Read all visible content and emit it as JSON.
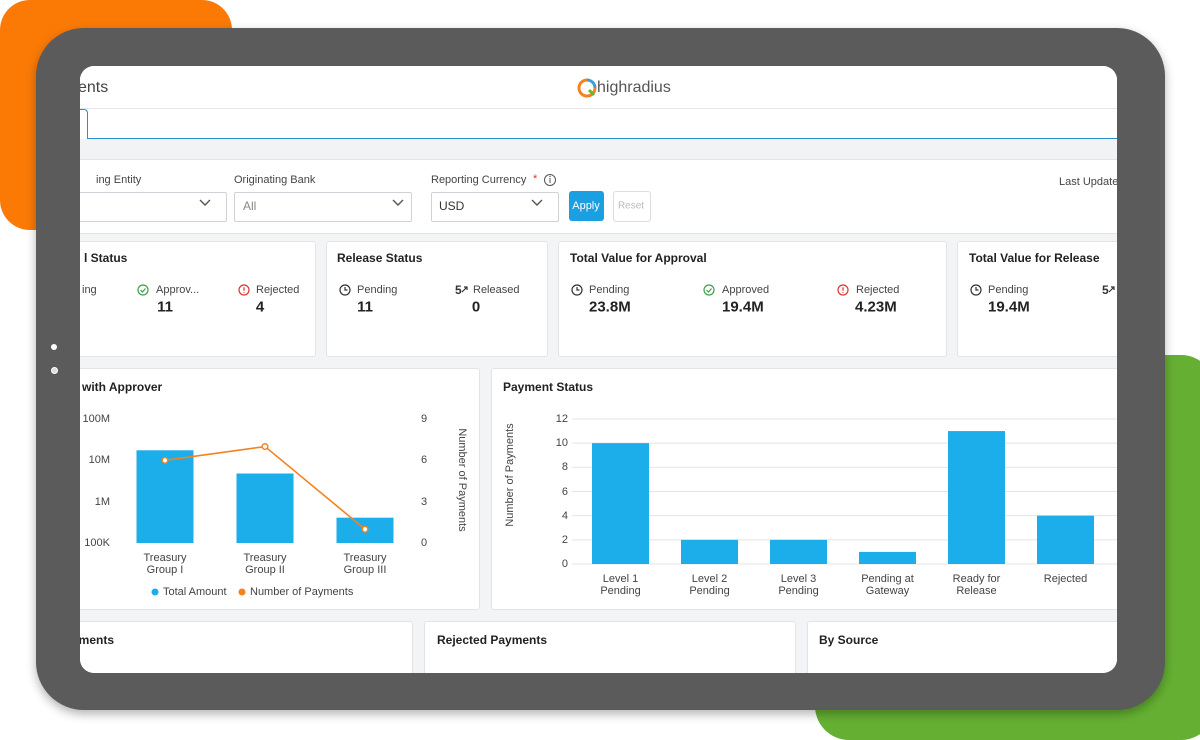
{
  "header": {
    "title": "ents",
    "logo": "highradius"
  },
  "filters": [
    {
      "label": "ing Entity"
    },
    {
      "label": "Originating Bank",
      "value": "All"
    },
    {
      "label": "Reporting Currency",
      "required": "*",
      "value": "USD"
    }
  ],
  "buttons": {
    "apply": "Apply",
    "reset": "Reset"
  },
  "last_update": "Last Update",
  "stat_cards": [
    {
      "title": "l Status",
      "items": [
        {
          "label": "ing"
        },
        {
          "label": "Approv...",
          "value": 11
        },
        {
          "label": "Rejected",
          "value": 4
        }
      ]
    },
    {
      "title": "Release Status",
      "items": [
        {
          "label": "Pending",
          "value": 11
        },
        {
          "label": "Released",
          "value": 0
        }
      ]
    },
    {
      "title": "Total Value for Approval",
      "items": [
        {
          "label": "Pending",
          "value": "23.8M"
        },
        {
          "label": "Approved",
          "value": "19.4M"
        },
        {
          "label": "Rejected",
          "value": "4.23M"
        }
      ]
    },
    {
      "title": "Total Value for Release",
      "items": [
        {
          "label": "Pending",
          "value": "19.4M"
        }
      ]
    }
  ],
  "chart_data": [
    {
      "type": "combo",
      "title": "with Approver",
      "categories": [
        "Treasury Group I",
        "Treasury Group II",
        "Treasury Group III"
      ],
      "series": [
        {
          "name": "Total Amount",
          "type": "bar",
          "color": "#1caeea",
          "values": [
            17500000,
            4800000,
            410000
          ]
        },
        {
          "name": "Number of Payments",
          "type": "line",
          "axis": "y2",
          "color": "#f5821f",
          "values": [
            6,
            7,
            1
          ]
        }
      ],
      "log_y": true,
      "ylim": [
        100000,
        100000000
      ],
      "yticks": [
        {
          "value": 100000,
          "label": "100K"
        },
        {
          "value": 1000000,
          "label": "1M"
        },
        {
          "value": 10000000,
          "label": "10M"
        },
        {
          "value": 100000000,
          "label": "100M"
        }
      ],
      "y2lim": [
        0,
        9
      ],
      "y2ticks": [
        0,
        3,
        6,
        9
      ],
      "y2label": "Number of Payments",
      "legend": "bottom",
      "grid": false
    },
    {
      "type": "bar",
      "title": "Payment Status",
      "categories": [
        "Level 1 Pending",
        "Level 2 Pending",
        "Level 3 Pending",
        "Pending at Gateway",
        "Ready for Release",
        "Rejected"
      ],
      "values": [
        10,
        2,
        2,
        1,
        11,
        4
      ],
      "color": "#1caeea",
      "ylim": [
        0,
        12
      ],
      "yticks": [
        0,
        2,
        4,
        6,
        8,
        10,
        12
      ],
      "ylabel": "Number of Payments",
      "grid": true
    }
  ],
  "bottom_cards": [
    "yments",
    "Rejected Payments",
    "By Source"
  ]
}
